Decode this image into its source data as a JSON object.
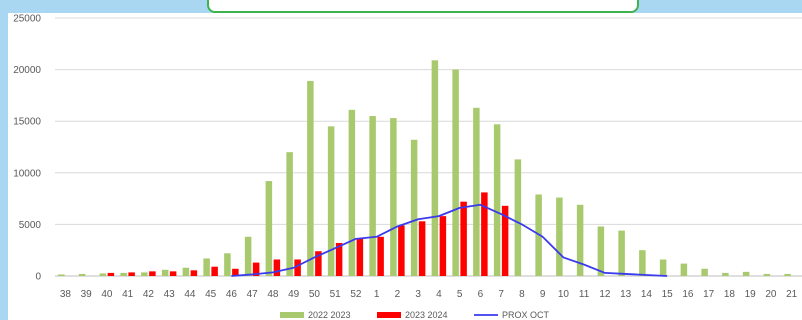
{
  "chart_data": {
    "type": "bar",
    "categories": [
      "38",
      "39",
      "40",
      "41",
      "42",
      "43",
      "44",
      "45",
      "46",
      "47",
      "48",
      "49",
      "50",
      "51",
      "52",
      "1",
      "2",
      "3",
      "4",
      "5",
      "6",
      "7",
      "8",
      "9",
      "10",
      "11",
      "12",
      "13",
      "14",
      "15",
      "16",
      "17",
      "18",
      "19",
      "20",
      "21"
    ],
    "ylim": [
      0,
      25000
    ],
    "yticks": [
      0,
      5000,
      10000,
      15000,
      20000,
      25000
    ],
    "grid": true,
    "legend_position": "bottom",
    "series": [
      {
        "name": "2022 2023",
        "kind": "bar",
        "color": "#a9c96e",
        "values": [
          150,
          200,
          250,
          300,
          350,
          600,
          800,
          1700,
          2200,
          3800,
          9200,
          12000,
          18900,
          14500,
          16100,
          15500,
          15300,
          13200,
          20900,
          20000,
          16300,
          14700,
          11300,
          7900,
          7600,
          6900,
          4800,
          4400,
          2500,
          1600,
          1200,
          700,
          300,
          400,
          200,
          200
        ]
      },
      {
        "name": "2023 2024",
        "kind": "bar",
        "color": "#ff0000",
        "values": [
          0,
          0,
          300,
          350,
          450,
          450,
          550,
          900,
          700,
          1300,
          1600,
          1600,
          2400,
          3200,
          3600,
          3800,
          4900,
          5300,
          5800,
          7200,
          8100,
          6800,
          0,
          0,
          0,
          0,
          0,
          0,
          0,
          0,
          0,
          0,
          0,
          0,
          0,
          0
        ]
      },
      {
        "name": "PROX OCT",
        "kind": "line",
        "color": "#3a3aee",
        "values": [
          null,
          null,
          null,
          null,
          null,
          null,
          null,
          null,
          0,
          150,
          350,
          800,
          1800,
          2700,
          3600,
          3800,
          4800,
          5500,
          5800,
          6600,
          6900,
          6000,
          5000,
          3800,
          1800,
          1100,
          300,
          200,
          100,
          0,
          null,
          null,
          null,
          null,
          null,
          null
        ]
      }
    ]
  }
}
